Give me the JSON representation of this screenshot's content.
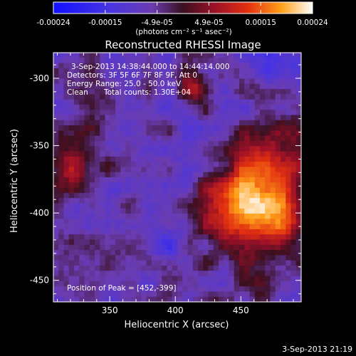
{
  "colorbar": {
    "tick_labels": [
      "-0.00024",
      "-0.00015",
      "-4.9e-05",
      "4.9e-05",
      "0.00015",
      "0.00024"
    ],
    "unit_label": "(photons cm⁻² s⁻¹ asec⁻²)",
    "range": [
      -0.00024,
      0.00024
    ]
  },
  "plot": {
    "title": "Reconstructed RHESSI Image",
    "xlabel": "Heliocentric X (arcsec)",
    "ylabel": "Heliocentric Y (arcsec)",
    "xlim": [
      307,
      496
    ],
    "ylim": [
      -466,
      -281
    ],
    "x_ticks": [
      "350",
      "400",
      "450"
    ],
    "y_ticks": [
      "-300",
      "-350",
      "-400",
      "-450"
    ]
  },
  "info": {
    "time_range": "3-Sep-2013 14:38:44.000 to 14:44:14.000",
    "detectors": "Detectors: 3F 5F 6F 7F 8F 9F, Att 0",
    "energy": "Energy Range: 25.0 - 50.0 keV",
    "clean": "Clean",
    "total_counts": "Total counts: 1.30E+04",
    "peak": "Position of Peak = [452,-399]"
  },
  "footer": {
    "timestamp": "3-Sep-2013 21:19"
  },
  "chart_data": {
    "type": "heatmap",
    "title": "Reconstructed RHESSI Image",
    "xlabel": "Heliocentric X (arcsec)",
    "ylabel": "Heliocentric Y (arcsec)",
    "xlim": [
      307,
      496
    ],
    "ylim": [
      -466,
      -281
    ],
    "value_range": [
      -0.00024,
      0.00024
    ],
    "peak": [
      452,
      -399
    ],
    "grid": false
  }
}
